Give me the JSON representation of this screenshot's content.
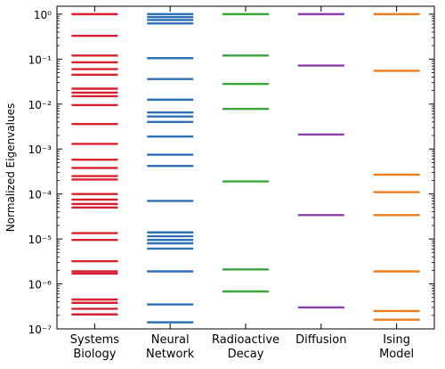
{
  "chart_data": {
    "type": "scatter",
    "ylabel": "Normalized Eigenvalues",
    "yscale": "log",
    "ylim": [
      1e-07,
      1.5
    ],
    "y_ticks": [
      {
        "value": 1,
        "label": "10⁰"
      },
      {
        "value": 0.1,
        "label": "10⁻¹"
      },
      {
        "value": 0.01,
        "label": "10⁻²"
      },
      {
        "value": 0.001,
        "label": "10⁻³"
      },
      {
        "value": 0.0001,
        "label": "10⁻⁴"
      },
      {
        "value": 1e-05,
        "label": "10⁻⁵"
      },
      {
        "value": 1e-06,
        "label": "10⁻⁶"
      },
      {
        "value": 1e-07,
        "label": "10⁻⁷"
      }
    ],
    "categories": [
      {
        "line1": "Systems",
        "line2": "Biology",
        "color": "#d62030",
        "values": [
          1.0,
          0.33,
          0.12,
          0.085,
          0.06,
          0.045,
          0.022,
          0.018,
          0.015,
          0.0095,
          0.0036,
          0.0013,
          0.00058,
          0.00038,
          0.00025,
          0.00021,
          0.0001,
          7.5e-05,
          6e-05,
          5e-05,
          1.35e-05,
          9.5e-06,
          3.2e-06,
          1.9e-06,
          1.7e-06,
          4.5e-07,
          3.8e-07,
          2.8e-07,
          2.1e-07
        ]
      },
      {
        "line1": "Neural",
        "line2": "Network",
        "color": "#2e6fb5",
        "values": [
          1.0,
          0.86,
          0.74,
          0.62,
          0.105,
          0.036,
          0.0125,
          0.0065,
          0.0053,
          0.004,
          0.0019,
          0.00075,
          0.00042,
          7e-05,
          1.4e-05,
          1.15e-05,
          9.5e-06,
          8e-06,
          6.1e-06,
          1.9e-06,
          3.5e-07,
          1.4e-07
        ]
      },
      {
        "line1": "Radioactive",
        "line2": "Decay",
        "color": "#3aa63a",
        "values": [
          1.0,
          0.12,
          0.028,
          0.0078,
          0.00019,
          2.1e-06,
          6.8e-07
        ]
      },
      {
        "line1": "Diffusion",
        "line2": "",
        "color": "#8a3fa8",
        "values": [
          1.0,
          0.072,
          0.0021,
          3.4e-05,
          3e-07
        ]
      },
      {
        "line1": "Ising",
        "line2": "Model",
        "color": "#f07c1e",
        "values": [
          1.0,
          0.055,
          0.00027,
          0.00011,
          3.4e-05,
          1.9e-06,
          2.5e-07,
          1.6e-07
        ]
      }
    ]
  }
}
